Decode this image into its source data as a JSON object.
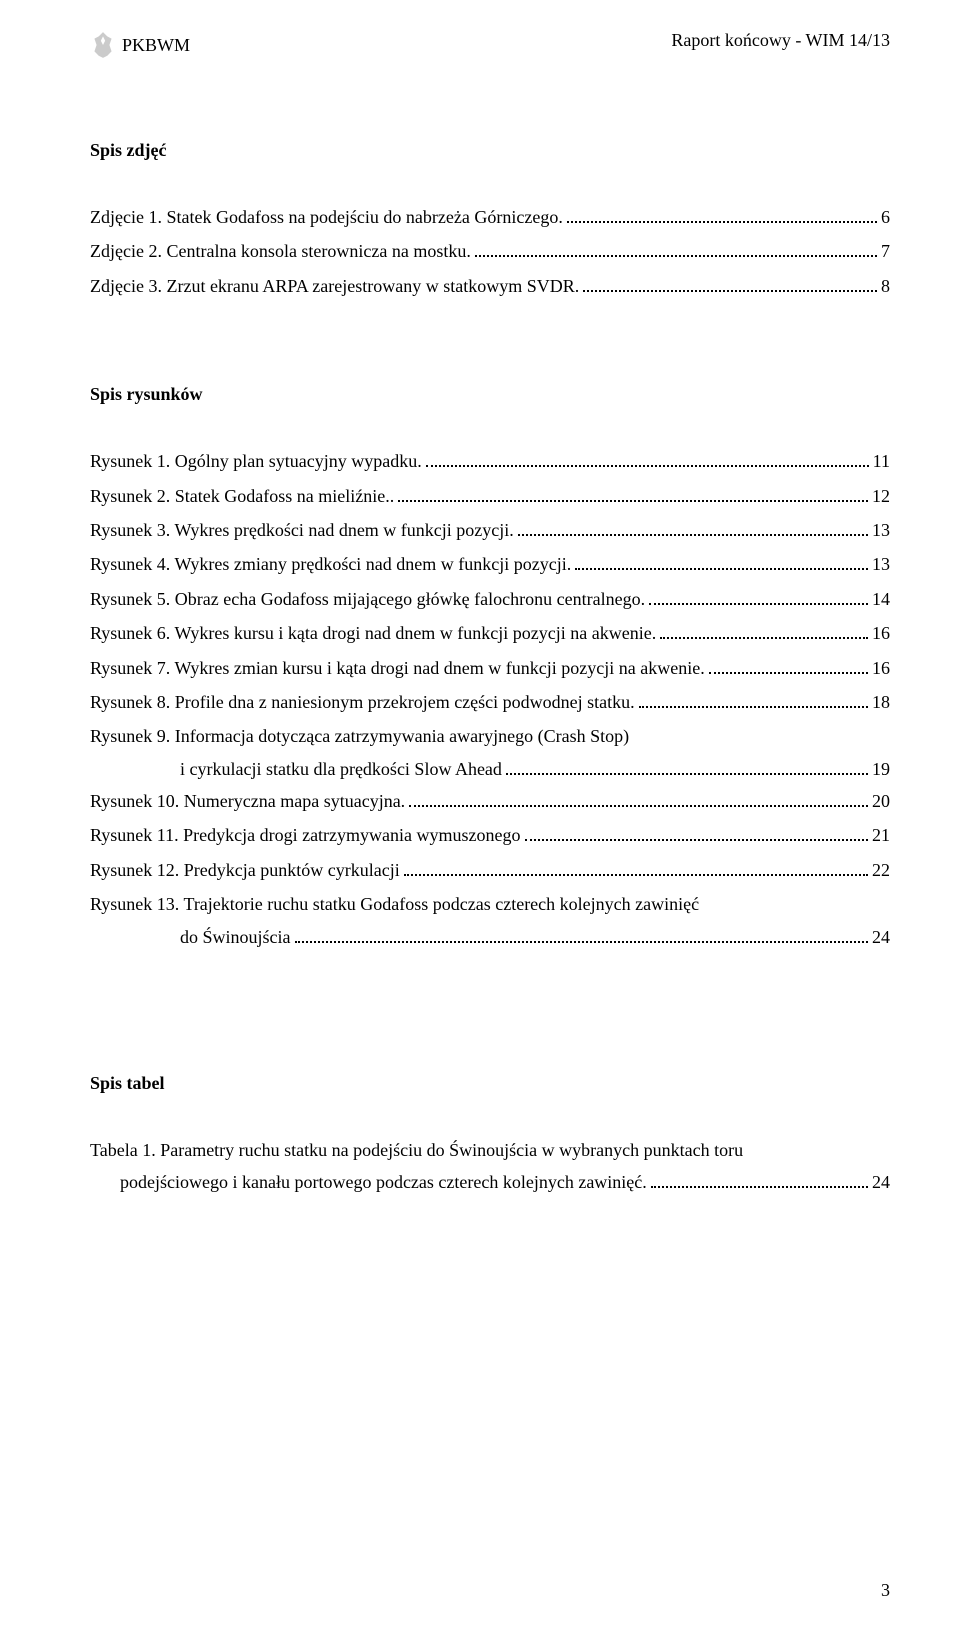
{
  "header": {
    "org": "PKBWM",
    "report": "Raport końcowy - WIM 14/13"
  },
  "sections": {
    "photos": {
      "title": "Spis zdjęć",
      "items": [
        {
          "label": "Zdjęcie 1. Statek Godafoss na podejściu do nabrzeża Górniczego.",
          "page": "6"
        },
        {
          "label": "Zdjęcie 2. Centralna konsola sterownicza na mostku.",
          "page": "7"
        },
        {
          "label": "Zdjęcie 3. Zrzut ekranu ARPA zarejestrowany w statkowym SVDR.",
          "page": "8"
        }
      ]
    },
    "figures": {
      "title": "Spis rysunków",
      "items": [
        {
          "label": "Rysunek 1. Ogólny plan sytuacyjny wypadku.",
          "page": "11"
        },
        {
          "label": "Rysunek 2. Statek Godafoss na mieliźnie..",
          "page": "12"
        },
        {
          "label": "Rysunek 3. Wykres prędkości nad dnem w funkcji pozycji.",
          "page": "13"
        },
        {
          "label": "Rysunek 4. Wykres zmiany prędkości nad dnem w funkcji pozycji.",
          "page": "13"
        },
        {
          "label": "Rysunek 5. Obraz echa Godafoss mijającego główkę falochronu centralnego.",
          "page": "14"
        },
        {
          "label": "Rysunek 6. Wykres kursu i kąta drogi nad dnem w funkcji pozycji na akwenie.",
          "page": "16"
        },
        {
          "label": "Rysunek 7. Wykres zmian kursu i kąta drogi nad dnem w funkcji pozycji na akwenie.",
          "page": "16"
        },
        {
          "label": "Rysunek 8. Profile dna z naniesionym przekrojem części podwodnej statku.",
          "page": "18"
        },
        {
          "label1": "Rysunek 9. Informacja dotycząca zatrzymywania awaryjnego (Crash Stop)",
          "label2": "i cyrkulacji statku dla prędkości Slow Ahead",
          "page": "19",
          "multiline": true
        },
        {
          "label": "Rysunek 10. Numeryczna mapa sytuacyjna.",
          "page": "20"
        },
        {
          "label": "Rysunek 11. Predykcja drogi zatrzymywania wymuszonego",
          "page": "21"
        },
        {
          "label": "Rysunek 12. Predykcja punktów cyrkulacji",
          "page": "22"
        },
        {
          "label1": "Rysunek 13. Trajektorie ruchu statku Godafoss podczas czterech kolejnych zawinięć",
          "label2": "do Świnoujścia",
          "page": "24",
          "multiline": true
        }
      ]
    },
    "tables": {
      "title": "Spis tabel",
      "items": [
        {
          "label1": "Tabela 1. Parametry ruchu statku na podejściu do Świnoujścia w wybranych punktach toru",
          "label2": "podejściowego i kanału portowego podczas czterech kolejnych zawinięć.",
          "page": "24",
          "multiline": true,
          "indent": 30
        }
      ]
    }
  },
  "pageNumber": "3"
}
